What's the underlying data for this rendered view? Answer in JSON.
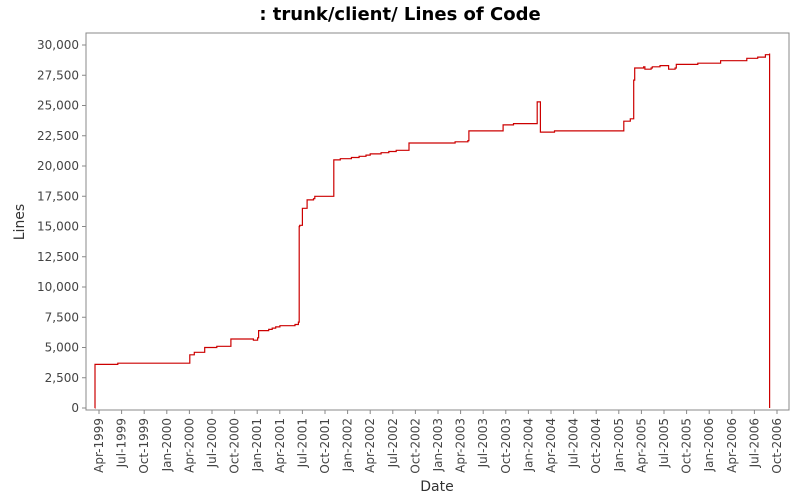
{
  "chart_data": {
    "type": "line",
    "title": ": trunk/client/ Lines of Code",
    "xlabel": "Date",
    "ylabel": "Lines",
    "grid": false,
    "legend": "none",
    "x_tick_labels": [
      "Apr-1999",
      "Jul-1999",
      "Oct-1999",
      "Jan-2000",
      "Apr-2000",
      "Jul-2000",
      "Oct-2000",
      "Jan-2001",
      "Apr-2001",
      "Jul-2001",
      "Oct-2001",
      "Jan-2002",
      "Apr-2002",
      "Jul-2002",
      "Oct-2002",
      "Jan-2003",
      "Apr-2003",
      "Jul-2003",
      "Oct-2003",
      "Jan-2004",
      "Apr-2004",
      "Jul-2004",
      "Oct-2004",
      "Jan-2005",
      "Apr-2005",
      "Jul-2005",
      "Oct-2005",
      "Jan-2006",
      "Apr-2006",
      "Jul-2006",
      "Oct-2006"
    ],
    "y_ticks": [
      0,
      2500,
      5000,
      7500,
      10000,
      12500,
      15000,
      17500,
      20000,
      22500,
      25000,
      27500,
      30000
    ],
    "y_tick_labels": [
      "0",
      "2,500",
      "5,000",
      "7,500",
      "10,000",
      "12,500",
      "15,000",
      "17,500",
      "20,000",
      "22,500",
      "25,000",
      "27,500",
      "30,000"
    ],
    "xlim": [
      "1999-02-15",
      "2006-11-01"
    ],
    "ylim": [
      0,
      31000
    ],
    "line_color": "#cc0000",
    "series": [
      {
        "x": [
          "1999-03-15",
          "1999-03-16",
          "1999-06-15",
          "1999-06-16",
          "2000-04-01",
          "2000-04-02",
          "2000-04-20",
          "2000-05-15",
          "2000-06-01",
          "2000-07-15",
          "2000-07-20",
          "2000-09-15",
          "2000-11-15",
          "2000-12-15",
          "2001-01-01",
          "2001-01-05",
          "2001-02-15",
          "2001-03-01",
          "2001-03-15",
          "2001-04-01",
          "2001-05-15",
          "2001-06-01",
          "2001-06-15",
          "2001-06-18",
          "2001-06-20",
          "2001-07-01",
          "2001-07-20",
          "2001-08-15",
          "2001-08-20",
          "2001-11-01",
          "2001-11-05",
          "2001-12-01",
          "2002-01-15",
          "2002-02-15",
          "2002-03-15",
          "2002-04-01",
          "2002-05-15",
          "2002-06-15",
          "2002-07-15",
          "2002-09-01",
          "2002-09-05",
          "2003-03-01",
          "2003-03-10",
          "2003-05-01",
          "2003-05-05",
          "2003-09-15",
          "2003-09-20",
          "2003-10-01",
          "2003-11-01",
          "2004-02-01",
          "2004-02-05",
          "2004-02-15",
          "2004-02-18",
          "2004-04-15",
          "2005-01-15",
          "2005-01-20",
          "2005-02-15",
          "2005-02-20",
          "2005-03-01",
          "2005-03-05",
          "2005-04-10",
          "2005-04-15",
          "2005-05-10",
          "2005-05-15",
          "2005-06-15",
          "2005-07-15",
          "2005-07-20",
          "2005-08-15",
          "2005-08-20",
          "2005-11-10",
          "2005-11-15",
          "2006-02-01",
          "2006-02-15",
          "2006-06-01",
          "2006-06-15",
          "2006-07-15",
          "2006-08-15",
          "2006-09-01",
          "2006-09-01"
        ],
        "y": [
          0,
          3600,
          3600,
          3700,
          3700,
          4400,
          4600,
          4600,
          5000,
          5000,
          5100,
          5700,
          5700,
          5600,
          5800,
          6400,
          6500,
          6600,
          6700,
          6800,
          6800,
          6900,
          7100,
          15000,
          15100,
          16500,
          17200,
          17300,
          17500,
          17500,
          20500,
          20600,
          20700,
          20800,
          20900,
          21000,
          21100,
          21200,
          21300,
          21300,
          21900,
          21900,
          22000,
          22100,
          22900,
          22900,
          23400,
          23400,
          23500,
          23500,
          25300,
          25300,
          22800,
          22900,
          22900,
          23700,
          23900,
          23900,
          27100,
          28100,
          28200,
          28000,
          28100,
          28200,
          28300,
          28300,
          28000,
          28100,
          28400,
          28400,
          28500,
          28500,
          28700,
          28900,
          28900,
          29000,
          29200,
          29300,
          0
        ]
      }
    ]
  }
}
